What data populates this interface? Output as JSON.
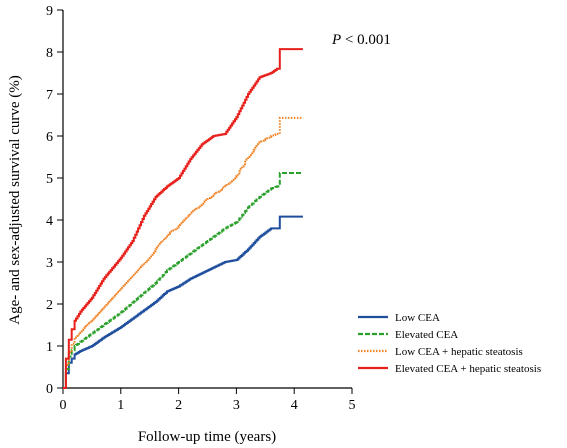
{
  "chart_data": {
    "type": "line",
    "title": "",
    "xlabel": "Follow-up time (years)",
    "ylabel": "Age- and sex-adjusted survival curve (%)",
    "xlim": [
      0,
      5
    ],
    "ylim": [
      0,
      9
    ],
    "xticks": [
      "0",
      "1",
      "2",
      "3",
      "4",
      "5"
    ],
    "yticks": [
      "0",
      "1",
      "2",
      "3",
      "4",
      "5",
      "6",
      "7",
      "8",
      "9"
    ],
    "annotation": {
      "p_label": "P",
      "p_text": " < 0.001"
    },
    "grid": false,
    "legend_position": "bottom-right",
    "series": [
      {
        "name": "Low CEA",
        "color": "#1f4e9c",
        "dash": "solid",
        "points": [
          [
            0,
            0
          ],
          [
            0.05,
            0.35
          ],
          [
            0.1,
            0.6
          ],
          [
            0.15,
            0.7
          ],
          [
            0.2,
            0.8
          ],
          [
            0.3,
            0.88
          ],
          [
            0.5,
            1.0
          ],
          [
            0.7,
            1.2
          ],
          [
            1.0,
            1.45
          ],
          [
            1.3,
            1.75
          ],
          [
            1.6,
            2.05
          ],
          [
            1.8,
            2.3
          ],
          [
            2.0,
            2.42
          ],
          [
            2.2,
            2.6
          ],
          [
            2.5,
            2.8
          ],
          [
            2.8,
            3.0
          ],
          [
            3.0,
            3.05
          ],
          [
            3.2,
            3.3
          ],
          [
            3.4,
            3.6
          ],
          [
            3.6,
            3.8
          ],
          [
            3.7,
            3.8
          ],
          [
            3.75,
            4.08
          ],
          [
            4.15,
            4.08
          ]
        ]
      },
      {
        "name": "Elevated CEA",
        "color": "#2aa02a",
        "dash": "dashed",
        "points": [
          [
            0,
            0
          ],
          [
            0.05,
            0.45
          ],
          [
            0.1,
            0.75
          ],
          [
            0.15,
            0.9
          ],
          [
            0.2,
            1.0
          ],
          [
            0.3,
            1.1
          ],
          [
            0.5,
            1.3
          ],
          [
            0.7,
            1.5
          ],
          [
            1.0,
            1.8
          ],
          [
            1.3,
            2.15
          ],
          [
            1.6,
            2.5
          ],
          [
            1.8,
            2.8
          ],
          [
            2.0,
            3.0
          ],
          [
            2.2,
            3.2
          ],
          [
            2.5,
            3.5
          ],
          [
            2.8,
            3.8
          ],
          [
            3.0,
            3.95
          ],
          [
            3.2,
            4.3
          ],
          [
            3.4,
            4.55
          ],
          [
            3.6,
            4.75
          ],
          [
            3.7,
            4.8
          ],
          [
            3.75,
            5.12
          ],
          [
            4.15,
            5.12
          ]
        ]
      },
      {
        "name": "Low CEA + hepatic steatosis",
        "color": "#f08020",
        "dash": "dotted",
        "points": [
          [
            0,
            0
          ],
          [
            0.05,
            0.55
          ],
          [
            0.1,
            0.85
          ],
          [
            0.15,
            1.05
          ],
          [
            0.2,
            1.2
          ],
          [
            0.3,
            1.35
          ],
          [
            0.5,
            1.6
          ],
          [
            0.7,
            1.9
          ],
          [
            1.0,
            2.35
          ],
          [
            1.3,
            2.8
          ],
          [
            1.6,
            3.3
          ],
          [
            1.8,
            3.65
          ],
          [
            2.0,
            3.85
          ],
          [
            2.2,
            4.15
          ],
          [
            2.5,
            4.5
          ],
          [
            2.8,
            4.8
          ],
          [
            3.0,
            5.05
          ],
          [
            3.2,
            5.5
          ],
          [
            3.4,
            5.85
          ],
          [
            3.6,
            6.0
          ],
          [
            3.7,
            6.05
          ],
          [
            3.75,
            6.43
          ],
          [
            4.15,
            6.43
          ]
        ]
      },
      {
        "name": "Elevated CEA + hepatic steatosis",
        "color": "#e8201c",
        "dash": "solid",
        "points": [
          [
            0,
            0
          ],
          [
            0.05,
            0.7
          ],
          [
            0.1,
            1.15
          ],
          [
            0.15,
            1.4
          ],
          [
            0.2,
            1.6
          ],
          [
            0.3,
            1.82
          ],
          [
            0.5,
            2.15
          ],
          [
            0.7,
            2.6
          ],
          [
            1.0,
            3.1
          ],
          [
            1.2,
            3.5
          ],
          [
            1.4,
            4.1
          ],
          [
            1.6,
            4.55
          ],
          [
            1.8,
            4.8
          ],
          [
            2.0,
            5.0
          ],
          [
            2.2,
            5.45
          ],
          [
            2.4,
            5.8
          ],
          [
            2.6,
            6.0
          ],
          [
            2.8,
            6.05
          ],
          [
            3.0,
            6.45
          ],
          [
            3.2,
            7.0
          ],
          [
            3.4,
            7.4
          ],
          [
            3.6,
            7.5
          ],
          [
            3.7,
            7.6
          ],
          [
            3.75,
            8.07
          ],
          [
            4.15,
            8.07
          ]
        ]
      }
    ]
  }
}
